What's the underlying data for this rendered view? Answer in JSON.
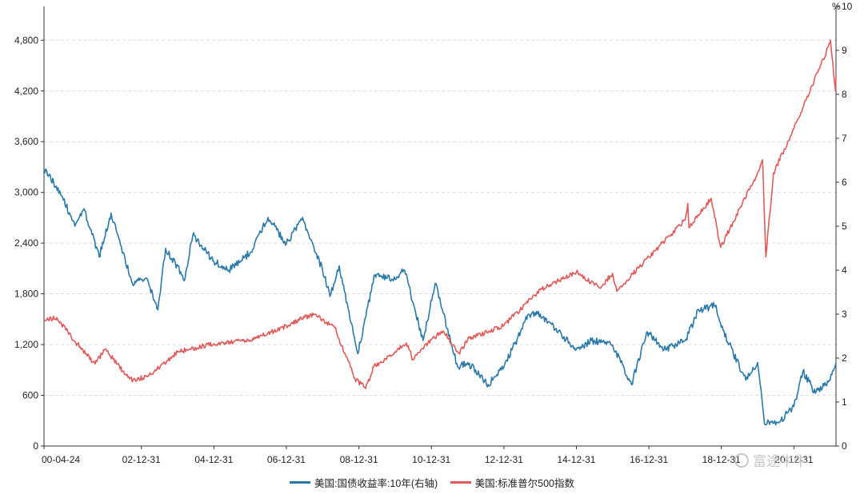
{
  "chart_data": {
    "type": "line",
    "y_left": {
      "ticks": [
        "0",
        "600",
        "1,200",
        "1,800",
        "2,400",
        "3,000",
        "3,600",
        "4,200",
        "4,800"
      ],
      "range": [
        0,
        5200
      ]
    },
    "y_right": {
      "ticks": [
        "0",
        "1",
        "2",
        "3",
        "4",
        "5",
        "6",
        "7",
        "8",
        "9",
        "10"
      ],
      "range": [
        0,
        10
      ],
      "unit": "%"
    },
    "x_ticks": [
      "00-04-24",
      "02-12-31",
      "04-12-31",
      "06-12-31",
      "08-12-31",
      "10-12-31",
      "12-12-31",
      "14-12-31",
      "16-12-31",
      "18-12-31",
      "20-12-31"
    ],
    "x_range": [
      "2000-04-24",
      "2022-02-28"
    ],
    "grid": true,
    "series": [
      {
        "name": "美国:国债收益率:10年(右轴)",
        "axis": "right",
        "color": "#2a79a8",
        "x": [
          "2000-04-24",
          "2000-10-01",
          "2001-03-01",
          "2001-06-01",
          "2001-11-01",
          "2002-03-01",
          "2002-07-01",
          "2002-10-01",
          "2003-03-01",
          "2003-06-15",
          "2003-09-01",
          "2004-03-15",
          "2004-06-01",
          "2004-12-31",
          "2005-06-01",
          "2005-12-31",
          "2006-06-30",
          "2006-12-31",
          "2007-06-12",
          "2007-12-31",
          "2008-03-15",
          "2008-06-15",
          "2008-12-20",
          "2009-06-10",
          "2009-12-31",
          "2010-04-05",
          "2010-10-08",
          "2011-02-08",
          "2011-09-22",
          "2011-12-31",
          "2012-07-25",
          "2013-01-01",
          "2013-09-05",
          "2014-01-01",
          "2014-12-31",
          "2015-06-01",
          "2015-12-31",
          "2016-07-08",
          "2016-12-15",
          "2017-06-01",
          "2017-12-31",
          "2018-05-17",
          "2018-11-08",
          "2018-12-31",
          "2019-09-03",
          "2019-12-31",
          "2020-03-09",
          "2020-08-04",
          "2020-12-31",
          "2021-03-31",
          "2021-08-04",
          "2021-12-31",
          "2022-02-28"
        ],
        "values": [
          6.3,
          5.8,
          5.0,
          5.4,
          4.3,
          5.3,
          4.4,
          3.7,
          3.8,
          3.1,
          4.5,
          3.8,
          4.8,
          4.2,
          4.0,
          4.4,
          5.2,
          4.6,
          5.2,
          4.0,
          3.4,
          4.1,
          2.1,
          3.9,
          3.8,
          4.0,
          2.4,
          3.7,
          1.8,
          1.9,
          1.4,
          1.8,
          3.0,
          3.0,
          2.2,
          2.4,
          2.3,
          1.4,
          2.6,
          2.2,
          2.4,
          3.1,
          3.2,
          2.7,
          1.5,
          1.9,
          0.5,
          0.55,
          0.9,
          1.7,
          1.2,
          1.5,
          1.9
        ]
      },
      {
        "name": "美国:标准普尔500指数",
        "axis": "left",
        "color": "#e15a5a",
        "x": [
          "2000-04-24",
          "2000-09-01",
          "2001-03-01",
          "2001-09-21",
          "2002-01-01",
          "2002-07-23",
          "2002-10-09",
          "2003-03-01",
          "2003-12-31",
          "2004-12-31",
          "2005-12-31",
          "2006-12-31",
          "2007-07-01",
          "2007-10-09",
          "2008-05-01",
          "2008-11-20",
          "2009-03-09",
          "2009-06-01",
          "2009-12-31",
          "2010-04-23",
          "2010-07-02",
          "2010-12-31",
          "2011-04-29",
          "2011-10-03",
          "2011-12-31",
          "2012-12-31",
          "2013-12-31",
          "2014-12-31",
          "2015-08-24",
          "2015-12-31",
          "2016-02-11",
          "2016-12-31",
          "2017-12-31",
          "2018-01-26",
          "2018-02-08",
          "2018-09-20",
          "2018-12-24",
          "2019-12-31",
          "2020-02-19",
          "2020-03-23",
          "2020-06-08",
          "2020-12-31",
          "2021-12-31",
          "2022-01-03",
          "2022-02-23",
          "2022-02-28"
        ],
        "values": [
          1480,
          1520,
          1240,
          970,
          1150,
          850,
          780,
          820,
          1110,
          1210,
          1250,
          1420,
          1520,
          1560,
          1400,
          800,
          680,
          940,
          1115,
          1220,
          1020,
          1258,
          1360,
          1100,
          1258,
          1426,
          1848,
          2058,
          1870,
          2044,
          1830,
          2239,
          2674,
          2870,
          2580,
          2930,
          2350,
          3231,
          3386,
          2237,
          3230,
          3756,
          4766,
          4796,
          4200,
          4370
        ]
      }
    ]
  },
  "watermark": "富途牛牛"
}
